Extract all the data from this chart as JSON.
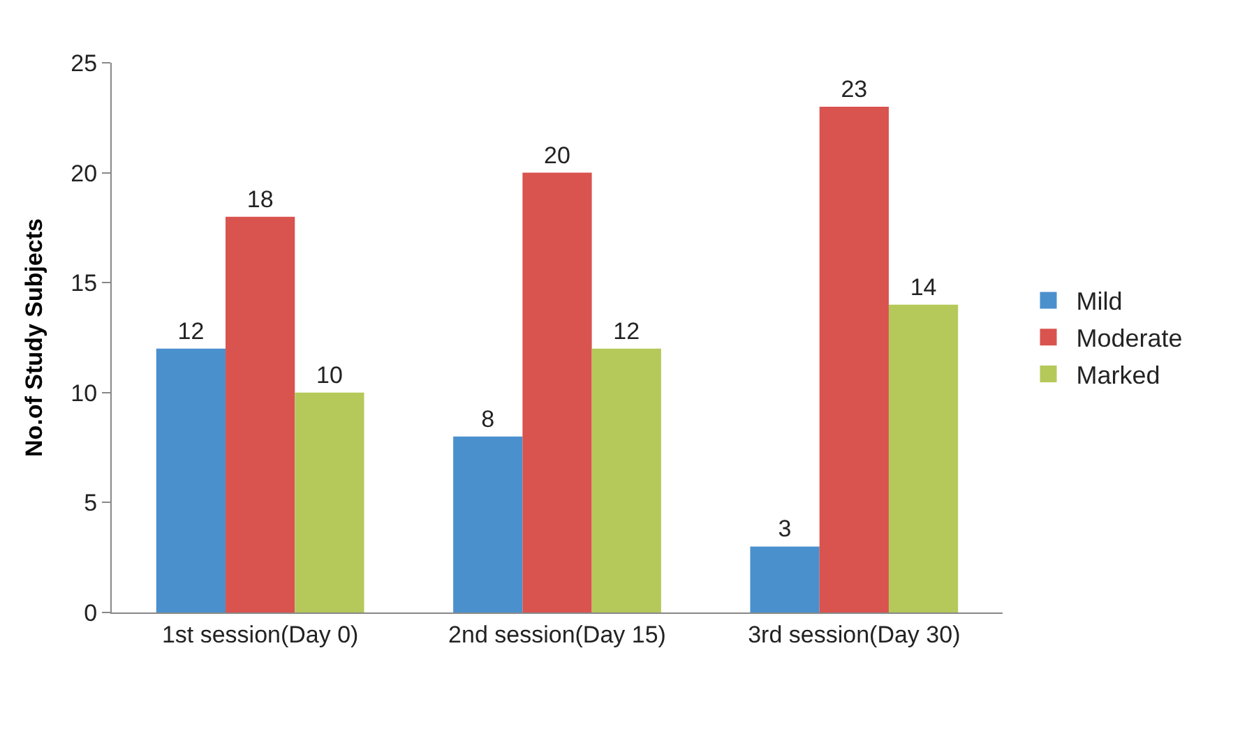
{
  "chart_data": {
    "type": "bar",
    "ylabel": "No.of Study Subjects",
    "categories": [
      "1st session(Day 0)",
      "2nd session(Day 15)",
      "3rd session(Day 30)"
    ],
    "series": [
      {
        "name": "Mild",
        "color": "#4a90cd",
        "values": [
          12,
          8,
          3
        ]
      },
      {
        "name": "Moderate",
        "color": "#d9534f",
        "values": [
          18,
          20,
          23
        ]
      },
      {
        "name": "Marked",
        "color": "#b5c95a",
        "values": [
          10,
          12,
          14
        ]
      }
    ],
    "ylim": [
      0,
      25
    ],
    "yticks": [
      0,
      5,
      10,
      15,
      20,
      25
    ],
    "grid": false,
    "legend": "right",
    "data_labels": true
  }
}
